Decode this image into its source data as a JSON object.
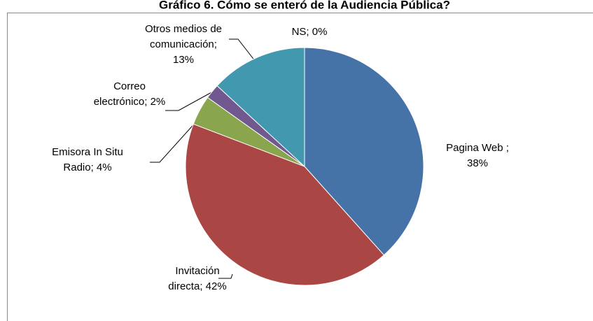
{
  "chart_data": {
    "type": "pie",
    "title": "Gráfico 6. Cómo se enteró de la Audiencia Pública?",
    "values": [
      38,
      42,
      4,
      2,
      13,
      0
    ],
    "value_labels": [
      "Pagina Web  ;\n38%",
      "Invitación\ndirecta; 42%",
      "Emisora In  Situ\nRadio; 4%",
      "Correo\nelectrónico; 2%",
      "Otros medios de\ncomunicación;\n13%",
      "NS; 0%"
    ],
    "colors": [
      "#4572a7",
      "#aa4643",
      "#89a54e",
      "#71588f",
      "#4198af",
      "#db843d"
    ]
  }
}
